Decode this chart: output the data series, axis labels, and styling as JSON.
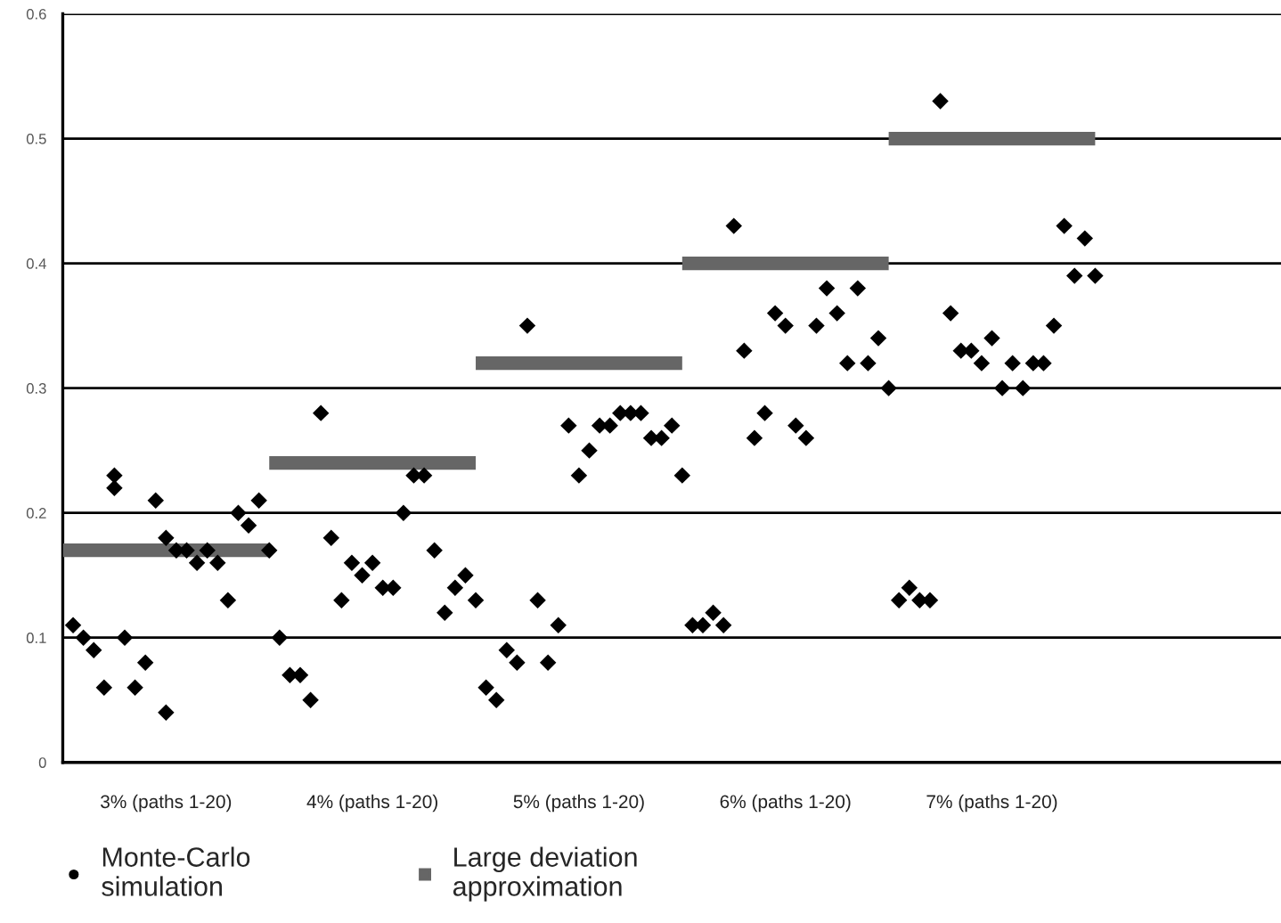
{
  "chart_data": {
    "type": "scatter",
    "categories": [
      null,
      null,
      null,
      null,
      null,
      null,
      null,
      null,
      null,
      null,
      "3% (paths 1-20)",
      null,
      null,
      null,
      null,
      null,
      null,
      null,
      null,
      null,
      null,
      null,
      null,
      null,
      null,
      null,
      null,
      null,
      null,
      null,
      "4% (paths 1-20)",
      null,
      null,
      null,
      null,
      null,
      null,
      null,
      null,
      null,
      null,
      null,
      null,
      null,
      null,
      null,
      null,
      null,
      null,
      null,
      "5% (paths 1-20)",
      null,
      null,
      null,
      null,
      null,
      null,
      null,
      null,
      null,
      null,
      null,
      null,
      null,
      null,
      null,
      null,
      null,
      null,
      null,
      "6% (paths 1-20)",
      null,
      null,
      null,
      null,
      null,
      null,
      null,
      null,
      null,
      null,
      null,
      null,
      null,
      null,
      null,
      null,
      null,
      null,
      null,
      "7% (paths 1-20)",
      null,
      null,
      null,
      null,
      null,
      null,
      null,
      null,
      null,
      null,
      null,
      null,
      null,
      null,
      null,
      null,
      null,
      null,
      null,
      null,
      null,
      null,
      null,
      null,
      null,
      null,
      null
    ],
    "ylim": [
      0,
      0.6
    ],
    "yticks": [
      0,
      0.1,
      0.2,
      0.3,
      0.4,
      0.5,
      0.6
    ],
    "grid": "y",
    "legend": "bottom left",
    "series": [
      {
        "name": "Monte-Carlo\nsimulation",
        "color": "#000000",
        "marker": "diamond",
        "values": [
          null,
          0.11,
          0.1,
          0.09,
          0.06,
          0.23,
          0.1,
          0.06,
          0.08,
          0.21,
          0.18,
          0.17,
          0.17,
          0.16,
          0.17,
          0.16,
          0.13,
          0.2,
          0.19,
          0.21,
          0.17,
          0.1,
          0.07,
          0.07,
          0.05,
          0.28,
          0.18,
          0.13,
          0.16,
          0.15,
          0.16,
          0.14,
          0.14,
          0.2,
          0.23,
          0.23,
          0.17,
          0.12,
          0.14,
          0.15,
          0.13,
          0.06,
          0.05,
          0.09,
          0.08,
          0.35,
          0.13,
          0.08,
          0.11,
          0.27,
          0.23,
          0.25,
          0.27,
          0.27,
          0.28,
          0.28,
          0.28,
          0.26,
          0.26,
          0.27,
          0.23,
          0.11,
          0.11,
          0.12,
          0.11,
          0.43,
          0.33,
          0.26,
          0.28,
          0.36,
          0.35,
          0.27,
          0.26,
          0.35,
          0.38,
          0.36,
          0.32,
          0.38,
          0.32,
          0.34,
          0.3,
          0.13,
          0.14,
          0.13,
          0.13,
          0.53,
          0.36,
          0.33,
          0.33,
          0.32,
          0.34,
          0.3,
          0.32,
          0.3,
          0.32,
          0.32,
          0.35,
          0.43,
          0.39,
          0.42,
          0.39,
          null,
          null,
          null,
          null,
          null,
          null,
          null,
          null,
          null,
          null,
          null,
          null,
          null,
          null,
          null,
          null,
          null
        ]
      },
      {
        "color": "#000000",
        "marker": "diamond",
        "values": [
          null,
          null,
          null,
          null,
          null,
          0.22,
          null,
          null,
          null,
          null,
          0.04,
          null,
          null,
          null,
          null,
          null,
          null,
          null,
          null,
          null,
          null,
          null,
          null,
          null,
          null,
          null,
          null,
          null,
          null,
          null,
          null,
          null,
          null,
          null,
          null,
          null,
          null,
          null,
          null,
          null,
          null,
          null,
          null,
          null,
          null,
          null,
          null,
          null,
          null,
          null,
          null,
          null,
          null,
          null,
          null,
          null,
          null,
          null,
          null,
          null,
          null,
          null,
          null,
          null,
          null,
          null,
          null,
          null,
          null,
          null,
          null,
          null,
          null,
          null,
          null,
          null,
          null,
          null,
          null,
          null,
          null,
          null,
          null,
          null,
          null,
          null,
          null,
          null,
          null,
          null,
          null,
          null,
          null,
          null,
          null,
          null,
          null,
          null,
          null,
          null,
          null,
          null,
          null,
          null,
          null,
          null,
          null,
          null,
          null,
          null,
          null,
          null,
          null,
          null,
          null,
          null,
          null,
          null
        ]
      },
      {
        "name": "Large deviation\napproximation",
        "type": "line",
        "color": "#666666",
        "values": [
          0.17,
          0.17,
          0.17,
          0.17,
          0.17,
          0.17,
          0.17,
          0.17,
          0.17,
          0.17,
          0.17,
          0.17,
          0.17,
          0.17,
          0.17,
          0.17,
          0.17,
          0.17,
          0.17,
          0.17,
          0.17,
          null,
          null,
          null,
          null,
          null,
          null,
          null,
          null,
          null,
          null,
          null,
          null,
          null,
          null,
          null,
          null,
          null,
          null,
          null,
          null,
          null,
          null,
          null,
          null,
          null,
          null,
          null,
          null,
          null,
          null,
          null,
          null,
          null,
          null,
          null,
          null,
          null,
          null,
          null,
          null,
          null,
          null,
          null,
          null,
          null,
          null,
          null,
          null,
          null,
          null,
          null,
          null,
          null,
          null,
          null,
          null,
          null,
          null,
          null,
          null,
          null,
          null,
          null,
          null,
          null,
          null,
          null,
          null,
          null,
          null,
          null,
          null,
          null,
          null,
          null,
          null,
          null,
          null,
          null,
          null,
          null,
          null,
          null,
          null,
          null,
          null,
          null,
          null,
          null,
          null,
          null,
          null,
          null,
          null,
          null,
          null,
          null
        ]
      },
      {
        "type": "line",
        "color": "#666666",
        "values": [
          null,
          null,
          null,
          null,
          null,
          null,
          null,
          null,
          null,
          null,
          null,
          null,
          null,
          null,
          null,
          null,
          null,
          null,
          null,
          null,
          0.24,
          0.24,
          0.24,
          0.24,
          0.24,
          0.24,
          0.24,
          0.24,
          0.24,
          0.24,
          0.24,
          0.24,
          0.24,
          0.24,
          0.24,
          0.24,
          0.24,
          0.24,
          0.24,
          0.24,
          0.24,
          null,
          null,
          null,
          null,
          null,
          null,
          null,
          null,
          null,
          null,
          null,
          null,
          null,
          null,
          null,
          null,
          null,
          null,
          null,
          null,
          null,
          null,
          null,
          null,
          null,
          null,
          null,
          null,
          null,
          null,
          null,
          null,
          null,
          null,
          null,
          null,
          null,
          null,
          null,
          null,
          null,
          null,
          null,
          null,
          null,
          null,
          null,
          null,
          null,
          null,
          null,
          null,
          null,
          null,
          null,
          null,
          null,
          null,
          null,
          null,
          null,
          null,
          null,
          null,
          null,
          null,
          null,
          null,
          null,
          null,
          null,
          null,
          null,
          null,
          null,
          null,
          null
        ]
      },
      {
        "type": "line",
        "color": "#666666",
        "values": [
          null,
          null,
          null,
          null,
          null,
          null,
          null,
          null,
          null,
          null,
          null,
          null,
          null,
          null,
          null,
          null,
          null,
          null,
          null,
          null,
          null,
          null,
          null,
          null,
          null,
          null,
          null,
          null,
          null,
          null,
          null,
          null,
          null,
          null,
          null,
          null,
          null,
          null,
          null,
          null,
          0.32,
          0.32,
          0.32,
          0.32,
          0.32,
          0.32,
          0.32,
          0.32,
          0.32,
          0.32,
          0.32,
          0.32,
          0.32,
          0.32,
          0.32,
          0.32,
          0.32,
          0.32,
          0.32,
          0.32,
          0.32,
          null,
          null,
          null,
          null,
          null,
          null,
          null,
          null,
          null,
          null,
          null,
          null,
          null,
          null,
          null,
          null,
          null,
          null,
          null,
          null,
          null,
          null,
          null,
          null,
          null,
          null,
          null,
          null,
          null,
          null,
          null,
          null,
          null,
          null,
          null,
          null,
          null,
          null,
          null,
          null,
          null,
          null,
          null,
          null,
          null,
          null,
          null,
          null,
          null,
          null,
          null,
          null,
          null,
          null,
          null,
          null,
          null
        ]
      },
      {
        "type": "line",
        "color": "#666666",
        "values": [
          null,
          null,
          null,
          null,
          null,
          null,
          null,
          null,
          null,
          null,
          null,
          null,
          null,
          null,
          null,
          null,
          null,
          null,
          null,
          null,
          null,
          null,
          null,
          null,
          null,
          null,
          null,
          null,
          null,
          null,
          null,
          null,
          null,
          null,
          null,
          null,
          null,
          null,
          null,
          null,
          null,
          null,
          null,
          null,
          null,
          null,
          null,
          null,
          null,
          null,
          null,
          null,
          null,
          null,
          null,
          null,
          null,
          null,
          null,
          null,
          0.4,
          0.4,
          0.4,
          0.4,
          0.4,
          0.4,
          0.4,
          0.4,
          0.4,
          0.4,
          0.4,
          0.4,
          0.4,
          0.4,
          0.4,
          0.4,
          0.4,
          0.4,
          0.4,
          0.4,
          0.4,
          null,
          null,
          null,
          null,
          null,
          null,
          null,
          null,
          null,
          null,
          null,
          null,
          null,
          null,
          null,
          null,
          null,
          null,
          null,
          null,
          null,
          null,
          null,
          null,
          null,
          null,
          null,
          null,
          null,
          null,
          null,
          null,
          null,
          null,
          null,
          null,
          null
        ]
      },
      {
        "type": "line",
        "color": "#666666",
        "values": [
          null,
          null,
          null,
          null,
          null,
          null,
          null,
          null,
          null,
          null,
          null,
          null,
          null,
          null,
          null,
          null,
          null,
          null,
          null,
          null,
          null,
          null,
          null,
          null,
          null,
          null,
          null,
          null,
          null,
          null,
          null,
          null,
          null,
          null,
          null,
          null,
          null,
          null,
          null,
          null,
          null,
          null,
          null,
          null,
          null,
          null,
          null,
          null,
          null,
          null,
          null,
          null,
          null,
          null,
          null,
          null,
          null,
          null,
          null,
          null,
          null,
          null,
          null,
          null,
          null,
          null,
          null,
          null,
          null,
          null,
          null,
          null,
          null,
          null,
          null,
          null,
          null,
          null,
          null,
          null,
          0.5,
          0.5,
          0.5,
          0.5,
          0.5,
          0.5,
          0.5,
          0.5,
          0.5,
          0.5,
          0.5,
          0.5,
          0.5,
          0.5,
          0.5,
          0.5,
          0.5,
          0.5,
          0.5,
          0.5,
          0.5,
          null,
          null,
          null,
          null,
          null,
          null,
          null,
          null,
          null,
          null,
          null,
          null,
          null,
          null,
          null,
          null,
          null
        ]
      }
    ]
  }
}
